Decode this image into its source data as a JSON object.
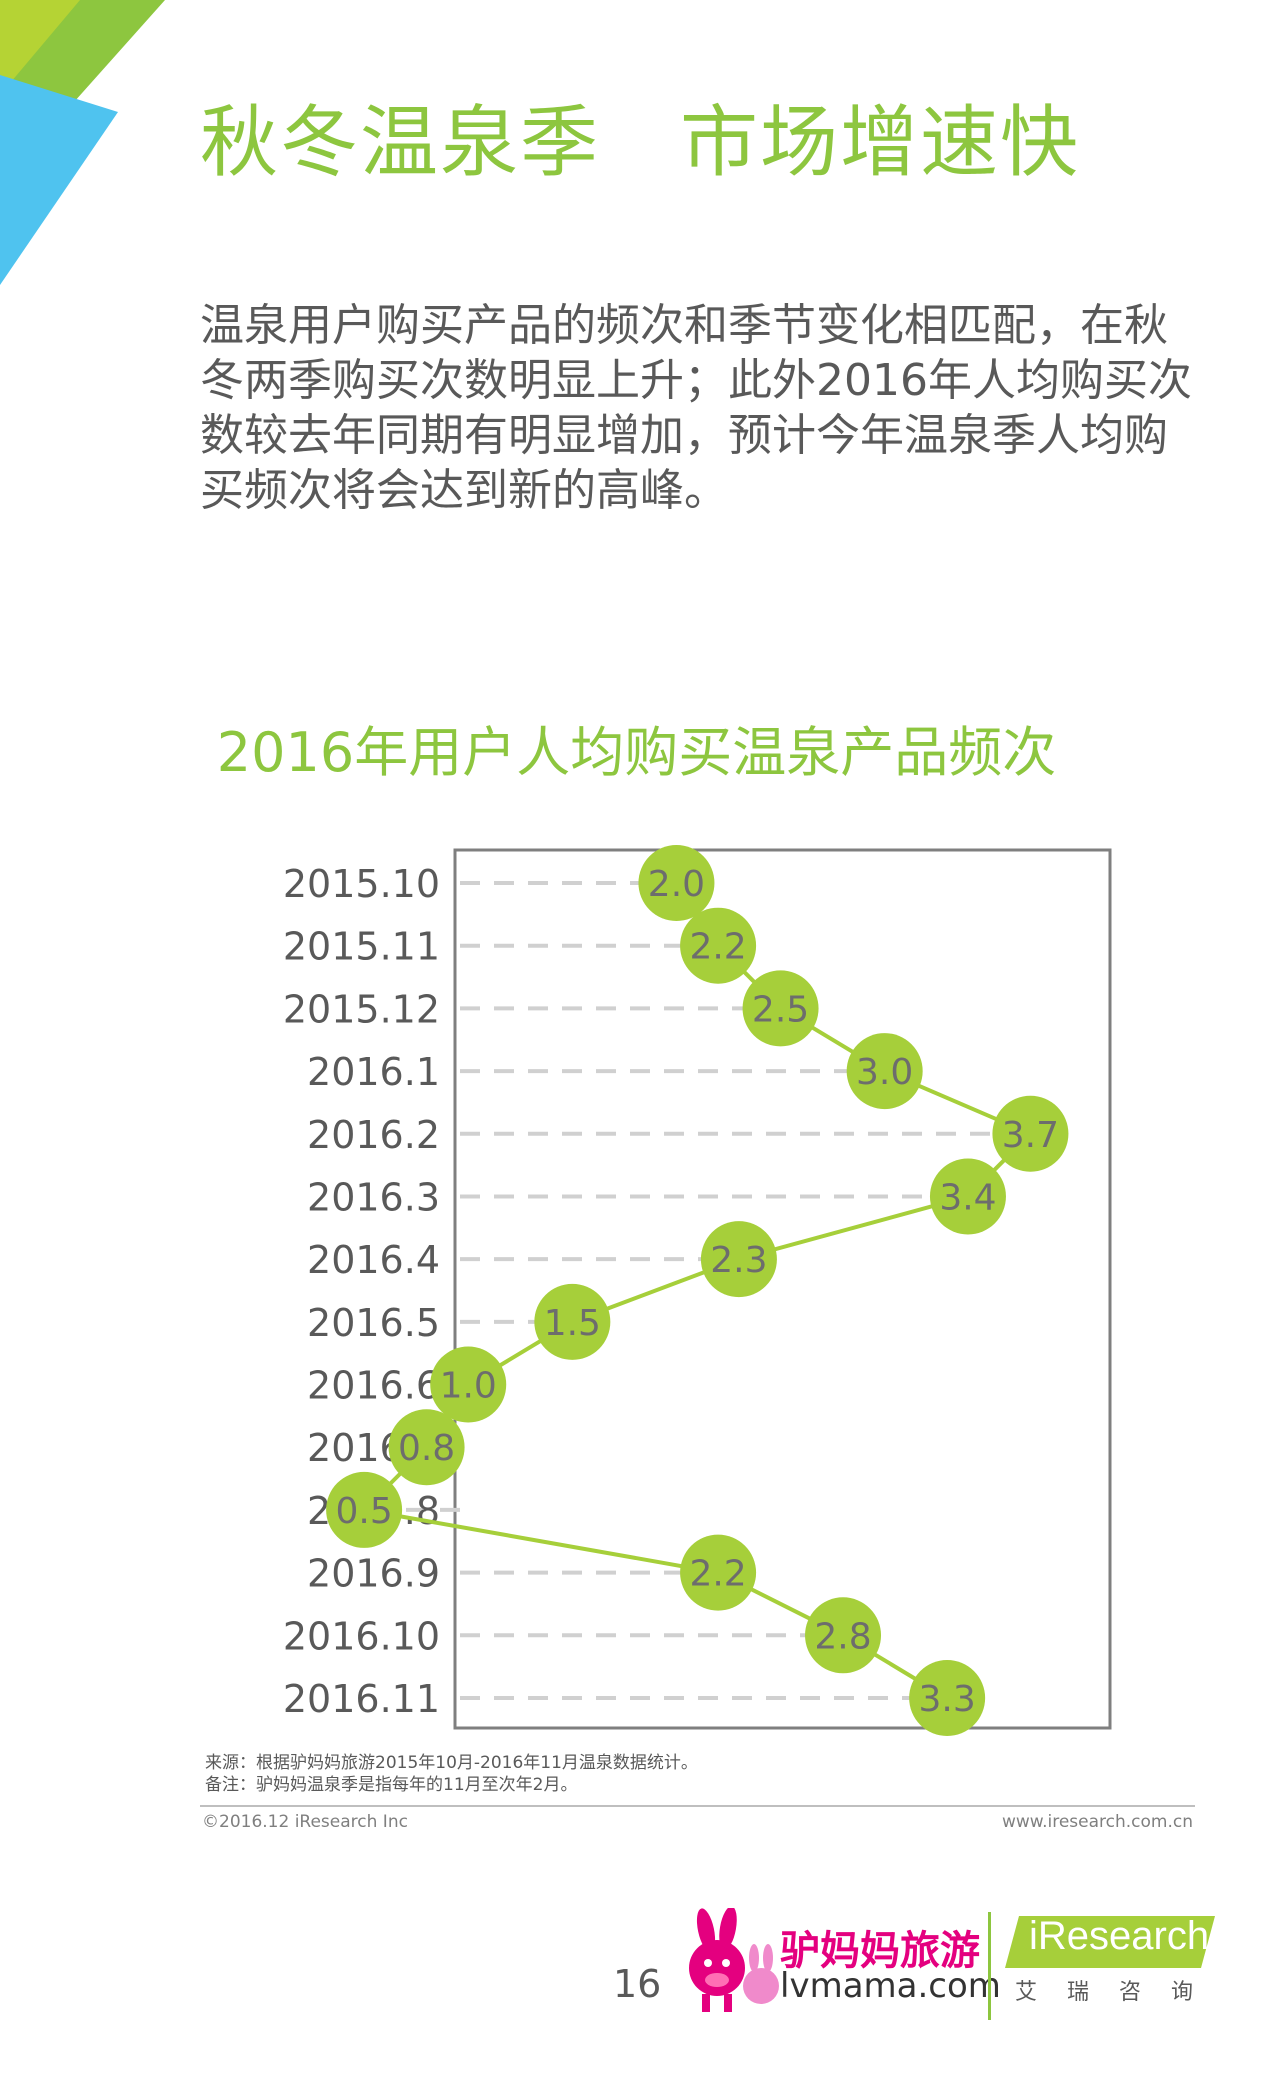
{
  "title": "秋冬温泉季　市场增速快",
  "intro": "温泉用户购买产品的频次和季节变化相匹配，在秋冬两季购买次数明显上升；此外2016年人均购买次数较去年同期有明显增加，预计今年温泉季人均购买频次将会达到新的高峰。",
  "chart_data": {
    "type": "line",
    "orientation": "vertical",
    "title": "2016年用户人均购买温泉产品频次",
    "categories": [
      "2015.10",
      "2015.11",
      "2015.12",
      "2016.1",
      "2016.2",
      "2016.3",
      "2016.4",
      "2016.5",
      "2016.6",
      "2016.7",
      "2016.8",
      "2016.9",
      "2016.10",
      "2016.11"
    ],
    "values": [
      2.0,
      2.2,
      2.5,
      3.0,
      3.7,
      3.4,
      2.3,
      1.5,
      1.0,
      0.8,
      0.5,
      2.2,
      2.8,
      3.3
    ],
    "value_labels": [
      "2.0",
      "2.2",
      "2.5",
      "3.0",
      "3.7",
      "3.4",
      "2.3",
      "1.5",
      "1.0",
      "0.8",
      "0.5",
      "2.2",
      "2.8",
      "3.3"
    ],
    "xlim": [
      0,
      4.5
    ],
    "grid": "dashed horizontal guides",
    "colors": {
      "marker": "#a6cf3a",
      "line": "#a6cf3a",
      "label": "#6d6d6d"
    }
  },
  "notes": {
    "source": "来源：根据驴妈妈旅游2015年10月-2016年11月温泉数据统计。",
    "remark": "备注：驴妈妈温泉季是指每年的11月至次年2月。"
  },
  "footer": {
    "copyright": "©2016.12 iResearch Inc",
    "url": "www.iresearch.com.cn",
    "page_number": "16"
  },
  "logos": {
    "lvmama_name": "驴妈妈旅游",
    "lvmama_domain": "lvmama.com",
    "iresearch_word": "iResearch",
    "iresearch_cn": "艾瑞咨询"
  },
  "colors": {
    "accent": "#8dc63f",
    "blue": "#4fc3ef",
    "text": "#595959"
  }
}
